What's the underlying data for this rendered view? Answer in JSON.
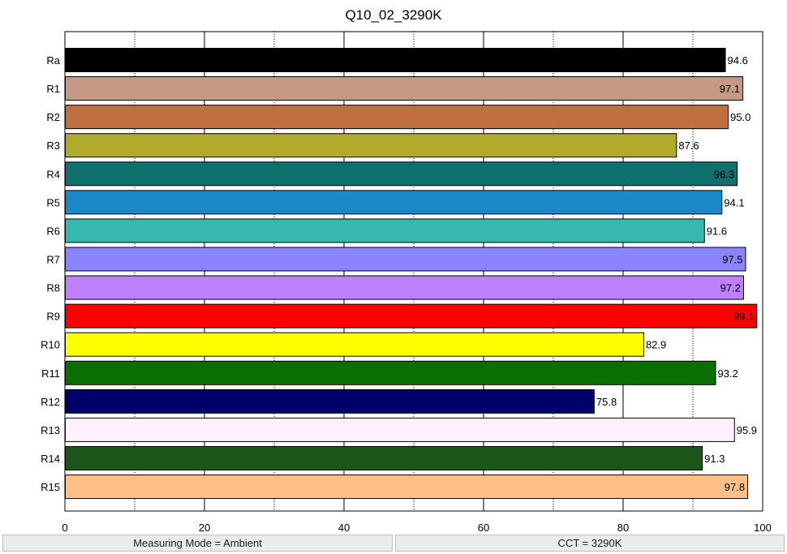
{
  "chart_data": {
    "type": "bar",
    "orientation": "horizontal",
    "title": "Q10_02_3290K",
    "xlabel": "",
    "ylabel": "",
    "xlim": [
      0,
      100
    ],
    "x_ticks": [
      0,
      20,
      40,
      60,
      80,
      100
    ],
    "x_minor_dotted": [
      10,
      30,
      50,
      70,
      90
    ],
    "grid": true,
    "categories": [
      "Ra",
      "R1",
      "R2",
      "R3",
      "R4",
      "R5",
      "R6",
      "R7",
      "R8",
      "R9",
      "R10",
      "R11",
      "R12",
      "R13",
      "R14",
      "R15"
    ],
    "values": [
      94.6,
      97.1,
      95.0,
      87.6,
      96.3,
      94.1,
      91.6,
      97.5,
      97.2,
      99.1,
      82.9,
      93.2,
      75.8,
      95.9,
      91.3,
      97.8
    ],
    "value_labels": [
      "94.6",
      "97.1",
      "95.0",
      "87.6",
      "96.3",
      "94.1",
      "91.6",
      "97.5",
      "97.2",
      "99.1",
      "82.9",
      "93.2",
      "75.8",
      "95.9",
      "91.3",
      "97.8"
    ],
    "colors": [
      "#000000",
      "#c49a84",
      "#bf7040",
      "#b0ab2a",
      "#10706e",
      "#1a89c8",
      "#36b8b0",
      "#8a85ff",
      "#bd80ff",
      "#ff0000",
      "#ffff00",
      "#0c6e00",
      "#000068",
      "#fff0ff",
      "#1c5518",
      "#ffc085"
    ],
    "label_inside": [
      false,
      true,
      false,
      false,
      true,
      false,
      false,
      true,
      true,
      true,
      false,
      false,
      false,
      false,
      false,
      true
    ]
  },
  "footer": {
    "measuring_mode": "Measuring Mode = Ambient",
    "cct": "CCT = 3290K"
  }
}
